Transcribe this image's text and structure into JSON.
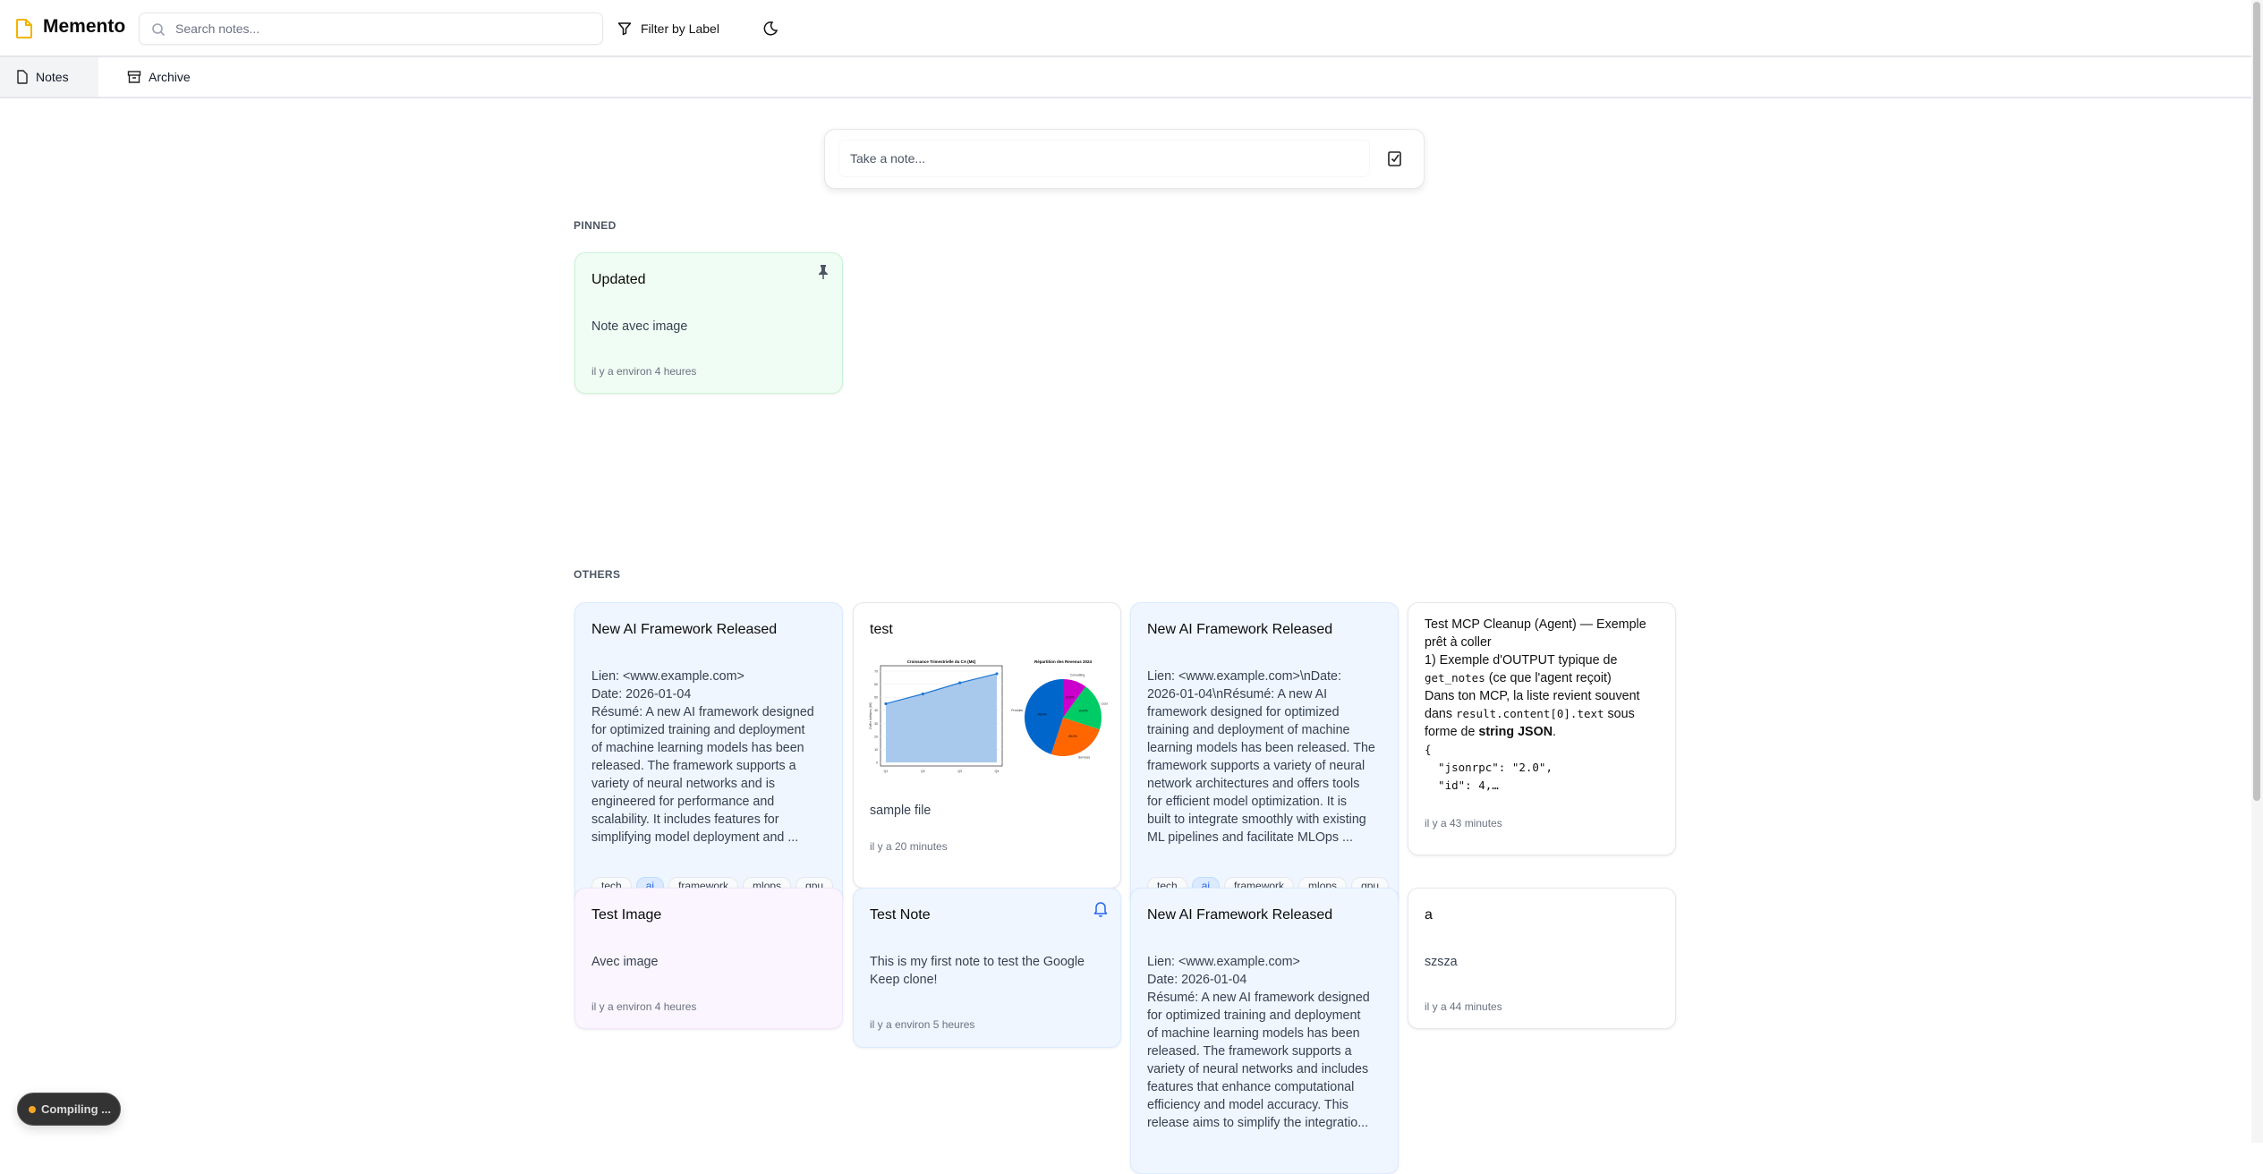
{
  "header": {
    "app_title": "Memento",
    "search_placeholder": "Search notes...",
    "filter_label": "Filter by Label"
  },
  "tabs": [
    {
      "label": "Notes",
      "active": true
    },
    {
      "label": "Archive",
      "active": false
    }
  ],
  "composer": {
    "placeholder": "Take a note..."
  },
  "sections": {
    "pinned": "PINNED",
    "others": "OTHERS"
  },
  "pinned": [
    {
      "title": "Updated",
      "body": "Note avec image",
      "time": "il y a environ 4 heures",
      "color": "#f0fdf4",
      "pinned": true
    }
  ],
  "others": [
    {
      "title": "New AI Framework Released",
      "body": "Lien: <www.example.com>\nDate: 2026-01-04\nRésumé: A new AI framework designed\nfor optimized training and deployment\nof machine learning models has been\nreleased. The framework supports a\nvariety of neural networks and is\nengineered for performance and\nscalability. It includes features for\nsimplifying model deployment and ...",
      "tags": [
        "tech",
        "ai",
        "framework",
        "mlops",
        "gpu"
      ],
      "color": "#eff6ff"
    },
    {
      "title": "test",
      "body": "sample file",
      "time": "il y a 20 minutes",
      "color": "#ffffff"
    },
    {
      "title": "New AI Framework Released",
      "body": "Lien: <www.example.com>\\nDate:\n2026-01-04\\nRésumé: A new AI\nframework designed for optimized\ntraining and deployment of machine\nlearning models has been released. The\nframework supports a variety of neural\nnetwork architectures and offers tools\nfor efficient model optimization. It is\nbuilt to integrate smoothly with existing\nML pipelines and facilitate MLOps ...",
      "tags": [
        "tech",
        "ai",
        "framework",
        "mlops",
        "gpu"
      ],
      "color": "#eff6ff"
    },
    {
      "mcp": {
        "line1": "Test MCP Cleanup (Agent) — Exemple prêt à coller",
        "line2a": "1) Exemple d'OUTPUT typique de ",
        "code1": "get_notes",
        "line2b": " (ce que l'agent reçoit)",
        "line3a": "Dans ton MCP, la liste revient souvent dans ",
        "code2": "result.content[0].text",
        "line3b": " sous forme de ",
        "bold": "string JSON",
        "line3c": ".",
        "codeblock": "{\n  \"jsonrpc\": \"2.0\",\n  \"id\": 4,…"
      },
      "time": "il y a 43 minutes",
      "color": "#ffffff"
    },
    {
      "title": "Test Image",
      "body": "Avec image",
      "time": "il y a environ 4 heures",
      "color": "#faf5ff"
    },
    {
      "title": "Test Note",
      "body": "This is my first note to test the Google\nKeep clone!",
      "time": "il y a environ 5 heures",
      "color": "#eff6ff",
      "reminder": true
    },
    {
      "title": "New AI Framework Released",
      "body": "Lien: <www.example.com>\nDate: 2026-01-04\nRésumé: A new AI framework designed\nfor optimized training and deployment\nof machine learning models has been\nreleased. The framework supports a\nvariety of neural networks and includes\nfeatures that enhance computational\nefficiency and model accuracy. This\nrelease aims to simplify the integratio...",
      "color": "#eff6ff"
    },
    {
      "title": "a",
      "body": "szsza",
      "time": "il y a 44 minutes",
      "color": "#ffffff"
    }
  ],
  "chart_data": [
    {
      "type": "area",
      "title": "Croissance Trimestrielle du CA (M€)",
      "ylabel": "Chiffre d'affaires (M€)",
      "categories": [
        "Q1",
        "Q2",
        "Q3",
        "Q4"
      ],
      "values": [
        45,
        52.5,
        61,
        68
      ],
      "ylim": [
        0,
        70
      ],
      "yticks": [
        0,
        10,
        20,
        30,
        40,
        50,
        60,
        70
      ],
      "grid": true,
      "color": "#1f77d4"
    },
    {
      "type": "pie",
      "title": "Répartition des Revenus 2024",
      "labels": [
        "Consulting",
        "Licences",
        "Services",
        "Produits"
      ],
      "values": [
        10,
        20,
        25,
        45
      ],
      "value_labels": [
        "10.0%",
        "20.0%",
        "25.0%",
        "45.0%"
      ],
      "colors": [
        "#cc00cc",
        "#00cc66",
        "#ff6600",
        "#0066cc"
      ]
    }
  ],
  "status": {
    "compiling": "Compiling ...",
    "dot_color": "#f5a623"
  },
  "accent": "#2563eb"
}
